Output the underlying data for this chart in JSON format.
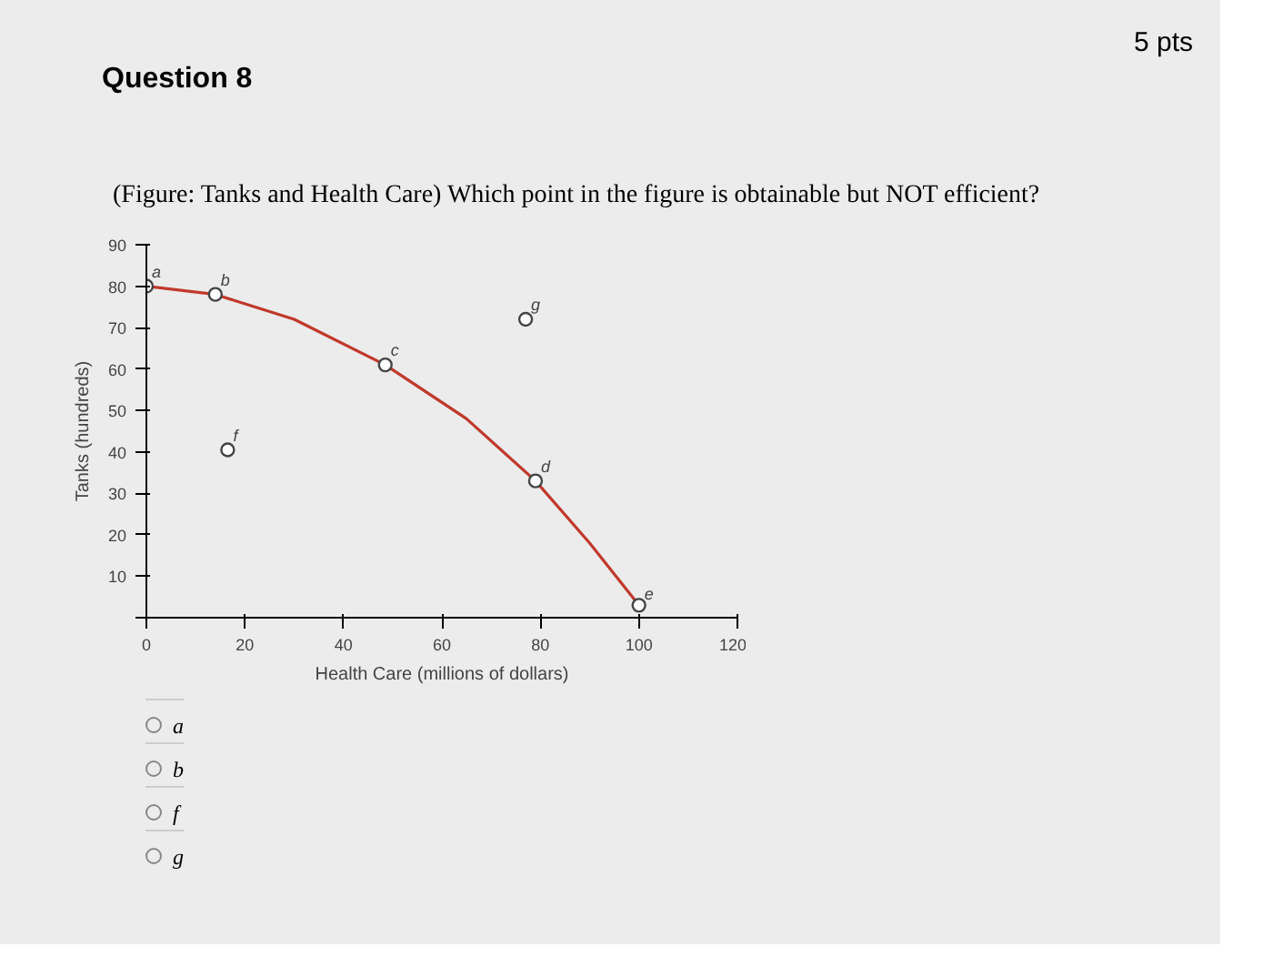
{
  "chart_data": {
    "type": "scatter",
    "title": "Question 8",
    "subtitle": "(Figure: Tanks and Health Care) Which point in the figure is obtainable but NOT efficient?",
    "xlabel": "Health Care (millions of dollars)",
    "ylabel": "Tanks (hundreds)",
    "xlim": [
      0,
      120
    ],
    "ylim": [
      0,
      90
    ],
    "xticks": [
      0,
      20,
      40,
      60,
      80,
      100,
      120
    ],
    "yticks": [
      {
        "value": 0,
        "label": null
      },
      10,
      20,
      30,
      40,
      50,
      60,
      70,
      80,
      90
    ],
    "grid": false,
    "series": [
      {
        "type": "line",
        "color": "#c0392b",
        "marker": "none",
        "line_style": "solid",
        "x": [
          0,
          14,
          30,
          48.5,
          65,
          79,
          90,
          100
        ],
        "values": [
          80,
          78,
          72,
          61,
          48,
          33,
          18,
          3
        ]
      },
      {
        "type": "scatter",
        "color": "#444444",
        "marker": "circle",
        "x": [
          0,
          14,
          48.5,
          79,
          100,
          16.5,
          77
        ],
        "values": [
          80,
          78,
          61,
          33,
          3,
          40.5,
          72
        ]
      }
    ],
    "annotations": [
      "5 pts",
      {
        "text": "a",
        "x": 0,
        "y": 80
      },
      {
        "text": "b",
        "x": 14,
        "y": 78
      },
      {
        "text": "c",
        "x": 48.5,
        "y": 61
      },
      {
        "text": "d",
        "x": 79,
        "y": 33
      },
      {
        "text": "e",
        "x": 100,
        "y": 3
      },
      {
        "text": "f",
        "x": 16.5,
        "y": 40.5
      },
      {
        "text": "g",
        "x": 77,
        "y": 72
      },
      "a",
      "b",
      "f",
      "g"
    ]
  }
}
